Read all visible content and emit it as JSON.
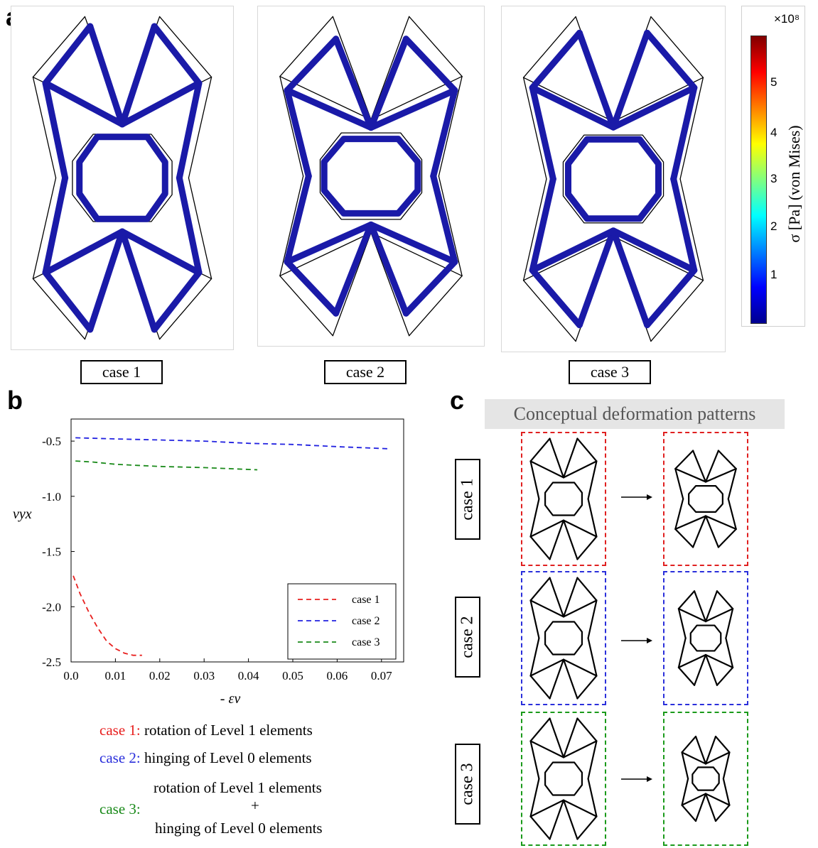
{
  "panel_a": {
    "letter": "a",
    "cases": [
      "case 1",
      "case 2",
      "case 3"
    ],
    "colorbar": {
      "exponent": "×10⁸",
      "label": "σ [Pa] (von Mises)",
      "ticks": [
        "5",
        "4",
        "3",
        "2",
        "1"
      ],
      "colormap": [
        "#00008f",
        "#0000ff",
        "#0080ff",
        "#00ffff",
        "#80ff80",
        "#ffff00",
        "#ff8000",
        "#ff0000",
        "#800000"
      ]
    },
    "colors": {
      "beam": "#1a1aa8",
      "outline": "#000000"
    }
  },
  "panel_b": {
    "letter": "b",
    "captions": [
      {
        "case": "case 1:",
        "text": "rotation of Level 1 elements",
        "color": "#e8201f"
      },
      {
        "case": "case 2:",
        "text": "hinging of Level 0 elements",
        "color": "#2a2fdb"
      },
      {
        "case": "case 3:",
        "text_line1": "rotation of Level 1 elements",
        "plus": "+",
        "text_line2": "hinging of Level 0 elements",
        "color": "#1a8a1a"
      }
    ]
  },
  "panel_c": {
    "letter": "c",
    "title": "Conceptual deformation patterns",
    "rows": [
      {
        "label": "case 1",
        "color": "#e02020"
      },
      {
        "label": "case 2",
        "color": "#2a2fdb"
      },
      {
        "label": "case 3",
        "color": "#1a9a1a"
      }
    ]
  },
  "chart_data": {
    "type": "line",
    "title": "",
    "xlabel": "- εy",
    "ylabel": "νyx",
    "xlim": [
      0.0,
      0.075
    ],
    "ylim": [
      -2.5,
      -0.3
    ],
    "xticks": [
      "0.0",
      "0.01",
      "0.02",
      "0.03",
      "0.04",
      "0.05",
      "0.06",
      "0.07"
    ],
    "yticks": [
      "-0.5",
      "-1.0",
      "-1.5",
      "-2.0",
      "-2.5"
    ],
    "legend_position": "bottom-right",
    "grid": false,
    "series": [
      {
        "name": "case 1",
        "color": "#e8201f",
        "x": [
          0.0005,
          0.002,
          0.004,
          0.006,
          0.008,
          0.01,
          0.012,
          0.014,
          0.016
        ],
        "y": [
          -1.72,
          -1.88,
          -2.05,
          -2.19,
          -2.31,
          -2.38,
          -2.42,
          -2.44,
          -2.44
        ]
      },
      {
        "name": "case 2",
        "color": "#2020e0",
        "x": [
          0.001,
          0.01,
          0.02,
          0.03,
          0.04,
          0.05,
          0.06,
          0.072
        ],
        "y": [
          -0.47,
          -0.48,
          -0.49,
          -0.5,
          -0.52,
          -0.53,
          -0.55,
          -0.57
        ]
      },
      {
        "name": "case 3",
        "color": "#1a8a1a",
        "x": [
          0.001,
          0.005,
          0.01,
          0.015,
          0.02,
          0.03,
          0.042
        ],
        "y": [
          -0.68,
          -0.69,
          -0.71,
          -0.72,
          -0.73,
          -0.74,
          -0.76
        ]
      }
    ]
  }
}
